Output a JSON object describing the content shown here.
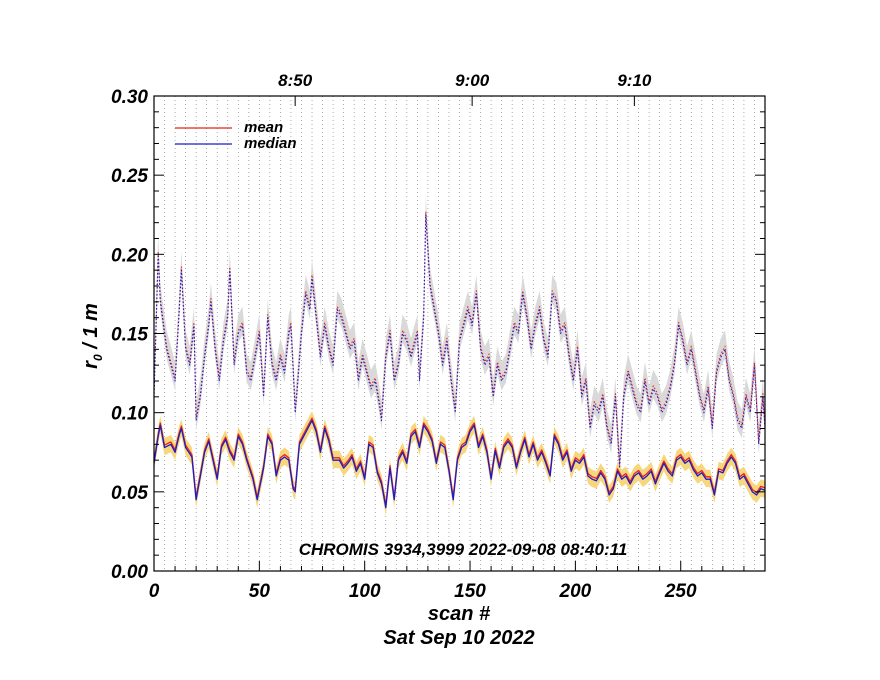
{
  "chart_data": {
    "type": "line",
    "title": "",
    "xlabel": "scan #",
    "ylabel": "r₀ / 1 m",
    "ylabel_main": "r",
    "ylabel_sub": "0",
    "ylabel_rest": " / 1 m",
    "date_label": "Sat Sep 10 2022",
    "annotation": "CHROMIS 3934,3999 2022-09-08 08:40:11",
    "xlim": [
      0,
      290
    ],
    "ylim": [
      0.0,
      0.3
    ],
    "x_ticks": [
      0,
      50,
      100,
      150,
      200,
      250
    ],
    "y_ticks": [
      "0.00",
      "0.05",
      "0.10",
      "0.15",
      "0.20",
      "0.25",
      "0.30"
    ],
    "top_axis": [
      {
        "label": "8:50",
        "scan": 67
      },
      {
        "label": "9:00",
        "scan": 151
      },
      {
        "label": "9:10",
        "scan": 228
      }
    ],
    "legend": [
      {
        "name": "mean",
        "color": "#e8231e"
      },
      {
        "name": "median",
        "color": "#1c1cc8"
      }
    ],
    "colors": {
      "mean": "#e8231e",
      "median": "#1c1cc8",
      "low_band": "#f7d77e",
      "high_band": "#d9d9d9",
      "grid": "#888888"
    },
    "low_series_keypoints": [
      [
        0,
        0.068
      ],
      [
        2,
        0.085
      ],
      [
        3,
        0.092
      ],
      [
        5,
        0.078
      ],
      [
        8,
        0.08
      ],
      [
        10,
        0.075
      ],
      [
        12,
        0.086
      ],
      [
        13,
        0.09
      ],
      [
        15,
        0.078
      ],
      [
        18,
        0.072
      ],
      [
        20,
        0.045
      ],
      [
        22,
        0.06
      ],
      [
        24,
        0.075
      ],
      [
        26,
        0.082
      ],
      [
        28,
        0.07
      ],
      [
        30,
        0.058
      ],
      [
        32,
        0.078
      ],
      [
        34,
        0.083
      ],
      [
        36,
        0.075
      ],
      [
        38,
        0.07
      ],
      [
        40,
        0.085
      ],
      [
        42,
        0.08
      ],
      [
        44,
        0.07
      ],
      [
        47,
        0.058
      ],
      [
        49,
        0.045
      ],
      [
        52,
        0.065
      ],
      [
        54,
        0.085
      ],
      [
        56,
        0.08
      ],
      [
        58,
        0.06
      ],
      [
        60,
        0.07
      ],
      [
        62,
        0.072
      ],
      [
        64,
        0.07
      ],
      [
        66,
        0.052
      ],
      [
        67,
        0.05
      ],
      [
        69,
        0.08
      ],
      [
        71,
        0.085
      ],
      [
        73,
        0.09
      ],
      [
        75,
        0.095
      ],
      [
        77,
        0.088
      ],
      [
        79,
        0.075
      ],
      [
        81,
        0.09
      ],
      [
        83,
        0.082
      ],
      [
        85,
        0.07
      ],
      [
        88,
        0.07
      ],
      [
        90,
        0.065
      ],
      [
        92,
        0.068
      ],
      [
        94,
        0.072
      ],
      [
        96,
        0.063
      ],
      [
        98,
        0.068
      ],
      [
        100,
        0.058
      ],
      [
        102,
        0.08
      ],
      [
        104,
        0.078
      ],
      [
        106,
        0.062
      ],
      [
        108,
        0.055
      ],
      [
        110,
        0.04
      ],
      [
        112,
        0.065
      ],
      [
        114,
        0.045
      ],
      [
        116,
        0.07
      ],
      [
        118,
        0.075
      ],
      [
        120,
        0.068
      ],
      [
        122,
        0.085
      ],
      [
        124,
        0.088
      ],
      [
        126,
        0.078
      ],
      [
        128,
        0.092
      ],
      [
        130,
        0.088
      ],
      [
        132,
        0.082
      ],
      [
        134,
        0.068
      ],
      [
        136,
        0.08
      ],
      [
        138,
        0.078
      ],
      [
        140,
        0.063
      ],
      [
        142,
        0.045
      ],
      [
        144,
        0.07
      ],
      [
        146,
        0.078
      ],
      [
        148,
        0.08
      ],
      [
        150,
        0.088
      ],
      [
        152,
        0.092
      ],
      [
        154,
        0.078
      ],
      [
        156,
        0.085
      ],
      [
        158,
        0.075
      ],
      [
        160,
        0.058
      ],
      [
        162,
        0.076
      ],
      [
        164,
        0.065
      ],
      [
        166,
        0.078
      ],
      [
        168,
        0.082
      ],
      [
        170,
        0.078
      ],
      [
        172,
        0.065
      ],
      [
        174,
        0.075
      ],
      [
        176,
        0.083
      ],
      [
        178,
        0.072
      ],
      [
        180,
        0.08
      ],
      [
        182,
        0.07
      ],
      [
        184,
        0.075
      ],
      [
        186,
        0.068
      ],
      [
        188,
        0.06
      ],
      [
        190,
        0.085
      ],
      [
        192,
        0.08
      ],
      [
        194,
        0.07
      ],
      [
        196,
        0.075
      ],
      [
        198,
        0.063
      ],
      [
        200,
        0.07
      ],
      [
        202,
        0.068
      ],
      [
        204,
        0.072
      ],
      [
        206,
        0.06
      ],
      [
        208,
        0.058
      ],
      [
        210,
        0.057
      ],
      [
        212,
        0.062
      ],
      [
        214,
        0.058
      ],
      [
        216,
        0.048
      ],
      [
        218,
        0.052
      ],
      [
        220,
        0.063
      ],
      [
        222,
        0.058
      ],
      [
        224,
        0.06
      ],
      [
        226,
        0.055
      ],
      [
        228,
        0.06
      ],
      [
        230,
        0.062
      ],
      [
        232,
        0.058
      ],
      [
        234,
        0.06
      ],
      [
        236,
        0.063
      ],
      [
        238,
        0.055
      ],
      [
        240,
        0.062
      ],
      [
        242,
        0.068
      ],
      [
        244,
        0.063
      ],
      [
        246,
        0.06
      ],
      [
        248,
        0.07
      ],
      [
        250,
        0.072
      ],
      [
        252,
        0.068
      ],
      [
        254,
        0.07
      ],
      [
        256,
        0.064
      ],
      [
        258,
        0.06
      ],
      [
        260,
        0.062
      ],
      [
        262,
        0.058
      ],
      [
        264,
        0.058
      ],
      [
        266,
        0.048
      ],
      [
        268,
        0.063
      ],
      [
        270,
        0.062
      ],
      [
        272,
        0.068
      ],
      [
        274,
        0.072
      ],
      [
        276,
        0.068
      ],
      [
        278,
        0.058
      ],
      [
        280,
        0.06
      ],
      [
        282,
        0.055
      ],
      [
        284,
        0.05
      ],
      [
        286,
        0.048
      ],
      [
        288,
        0.052
      ],
      [
        290,
        0.051
      ]
    ],
    "high_series_keypoints": [
      [
        0,
        0.11
      ],
      [
        2,
        0.2
      ],
      [
        3,
        0.17
      ],
      [
        5,
        0.15
      ],
      [
        6,
        0.14
      ],
      [
        8,
        0.13
      ],
      [
        10,
        0.12
      ],
      [
        12,
        0.165
      ],
      [
        13,
        0.19
      ],
      [
        15,
        0.14
      ],
      [
        17,
        0.13
      ],
      [
        19,
        0.155
      ],
      [
        20,
        0.095
      ],
      [
        22,
        0.11
      ],
      [
        24,
        0.135
      ],
      [
        26,
        0.155
      ],
      [
        27,
        0.17
      ],
      [
        29,
        0.14
      ],
      [
        31,
        0.12
      ],
      [
        33,
        0.145
      ],
      [
        35,
        0.16
      ],
      [
        36,
        0.19
      ],
      [
        38,
        0.13
      ],
      [
        40,
        0.15
      ],
      [
        42,
        0.155
      ],
      [
        44,
        0.125
      ],
      [
        46,
        0.12
      ],
      [
        48,
        0.135
      ],
      [
        50,
        0.15
      ],
      [
        52,
        0.11
      ],
      [
        54,
        0.16
      ],
      [
        56,
        0.13
      ],
      [
        58,
        0.12
      ],
      [
        60,
        0.135
      ],
      [
        62,
        0.125
      ],
      [
        64,
        0.15
      ],
      [
        65,
        0.155
      ],
      [
        67,
        0.1
      ],
      [
        68,
        0.115
      ],
      [
        70,
        0.15
      ],
      [
        72,
        0.175
      ],
      [
        74,
        0.165
      ],
      [
        75,
        0.185
      ],
      [
        77,
        0.16
      ],
      [
        79,
        0.135
      ],
      [
        81,
        0.155
      ],
      [
        83,
        0.14
      ],
      [
        85,
        0.13
      ],
      [
        87,
        0.165
      ],
      [
        89,
        0.16
      ],
      [
        91,
        0.15
      ],
      [
        93,
        0.14
      ],
      [
        95,
        0.145
      ],
      [
        97,
        0.12
      ],
      [
        99,
        0.135
      ],
      [
        101,
        0.125
      ],
      [
        103,
        0.115
      ],
      [
        105,
        0.12
      ],
      [
        107,
        0.105
      ],
      [
        108,
        0.095
      ],
      [
        110,
        0.135
      ],
      [
        112,
        0.15
      ],
      [
        114,
        0.12
      ],
      [
        116,
        0.13
      ],
      [
        118,
        0.15
      ],
      [
        120,
        0.145
      ],
      [
        122,
        0.135
      ],
      [
        124,
        0.145
      ],
      [
        125,
        0.15
      ],
      [
        126,
        0.12
      ],
      [
        128,
        0.16
      ],
      [
        129,
        0.225
      ],
      [
        131,
        0.18
      ],
      [
        133,
        0.165
      ],
      [
        135,
        0.15
      ],
      [
        137,
        0.13
      ],
      [
        139,
        0.145
      ],
      [
        141,
        0.12
      ],
      [
        143,
        0.1
      ],
      [
        145,
        0.145
      ],
      [
        147,
        0.155
      ],
      [
        149,
        0.165
      ],
      [
        151,
        0.155
      ],
      [
        153,
        0.175
      ],
      [
        155,
        0.14
      ],
      [
        157,
        0.13
      ],
      [
        159,
        0.135
      ],
      [
        161,
        0.11
      ],
      [
        163,
        0.13
      ],
      [
        165,
        0.12
      ],
      [
        167,
        0.125
      ],
      [
        169,
        0.14
      ],
      [
        171,
        0.155
      ],
      [
        173,
        0.15
      ],
      [
        175,
        0.175
      ],
      [
        177,
        0.16
      ],
      [
        179,
        0.14
      ],
      [
        181,
        0.155
      ],
      [
        183,
        0.165
      ],
      [
        185,
        0.145
      ],
      [
        187,
        0.135
      ],
      [
        189,
        0.175
      ],
      [
        191,
        0.17
      ],
      [
        193,
        0.15
      ],
      [
        195,
        0.155
      ],
      [
        197,
        0.135
      ],
      [
        199,
        0.12
      ],
      [
        201,
        0.14
      ],
      [
        203,
        0.11
      ],
      [
        205,
        0.12
      ],
      [
        207,
        0.09
      ],
      [
        209,
        0.105
      ],
      [
        211,
        0.1
      ],
      [
        213,
        0.11
      ],
      [
        215,
        0.09
      ],
      [
        217,
        0.08
      ],
      [
        219,
        0.11
      ],
      [
        221,
        0.065
      ],
      [
        223,
        0.11
      ],
      [
        225,
        0.125
      ],
      [
        227,
        0.115
      ],
      [
        229,
        0.105
      ],
      [
        231,
        0.1
      ],
      [
        233,
        0.12
      ],
      [
        235,
        0.105
      ],
      [
        237,
        0.115
      ],
      [
        239,
        0.11
      ],
      [
        241,
        0.1
      ],
      [
        243,
        0.105
      ],
      [
        245,
        0.115
      ],
      [
        247,
        0.13
      ],
      [
        249,
        0.155
      ],
      [
        251,
        0.145
      ],
      [
        253,
        0.13
      ],
      [
        255,
        0.14
      ],
      [
        257,
        0.125
      ],
      [
        259,
        0.11
      ],
      [
        261,
        0.1
      ],
      [
        263,
        0.115
      ],
      [
        265,
        0.09
      ],
      [
        267,
        0.125
      ],
      [
        269,
        0.135
      ],
      [
        271,
        0.14
      ],
      [
        273,
        0.12
      ],
      [
        275,
        0.11
      ],
      [
        277,
        0.095
      ],
      [
        279,
        0.09
      ],
      [
        281,
        0.11
      ],
      [
        283,
        0.1
      ],
      [
        285,
        0.13
      ],
      [
        287,
        0.08
      ],
      [
        289,
        0.11
      ],
      [
        290,
        0.09
      ]
    ]
  }
}
